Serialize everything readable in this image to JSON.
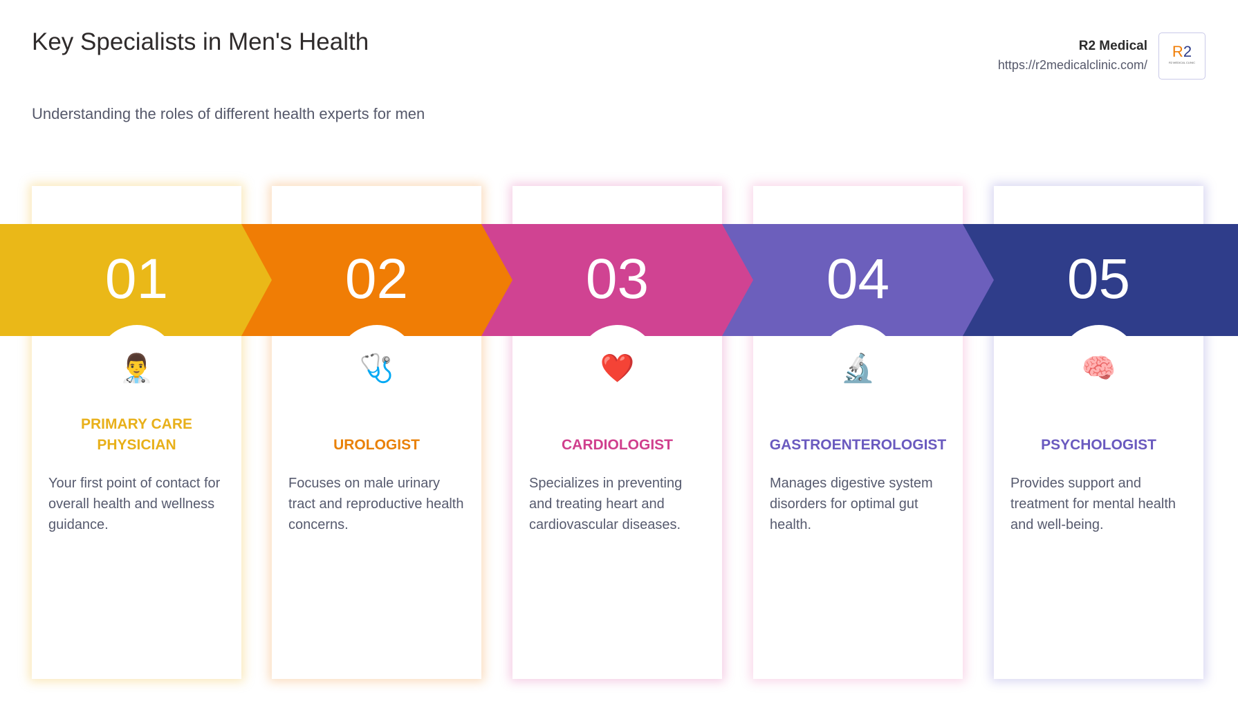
{
  "header": {
    "title": "Key Specialists in Men's Health",
    "subtitle": "Understanding the roles of different health experts for men"
  },
  "brand": {
    "name": "R2 Medical",
    "url": "https://r2medicalclinic.com/",
    "logo_text": "R2",
    "logo_subtext": "R2 MEDICAL CLINIC"
  },
  "specialists": [
    {
      "number": "01",
      "title": "PRIMARY CARE PHYSICIAN",
      "description": "Your first point of contact for overall health and wellness guidance.",
      "icon": "man-health-worker-icon",
      "emoji": "👨‍⚕️",
      "band_color": "#EAB818",
      "title_color": "#E8B01A",
      "glow": "rgba(240,190,60,0.35)"
    },
    {
      "number": "02",
      "title": "UROLOGIST",
      "description": "Focuses on male urinary tract and reproductive health concerns.",
      "icon": "stethoscope-icon",
      "emoji": "🩺",
      "band_color": "#F07D05",
      "title_color": "#E98108",
      "glow": "rgba(240,140,40,0.3)"
    },
    {
      "number": "03",
      "title": "CARDIOLOGIST",
      "description": "Specializes in preventing and treating heart and cardiovascular diseases.",
      "icon": "heart-icon",
      "emoji": "❤️",
      "band_color": "#D04392",
      "title_color": "#D03F8D",
      "glow": "rgba(220,80,160,0.28)"
    },
    {
      "number": "04",
      "title": "GASTROENTEROLOGIST",
      "description": "Manages digestive system disorders for optimal gut health.",
      "icon": "microscope-icon",
      "emoji": "🔬",
      "band_color": "#6C5FBC",
      "title_color": "#6A5ABF",
      "glow": "rgba(230,100,170,0.25)"
    },
    {
      "number": "05",
      "title": "PSYCHOLOGIST",
      "description": "Provides support and treatment for mental health and well-being.",
      "icon": "brain-icon",
      "emoji": "🧠",
      "band_color": "#2F3D8A",
      "title_color": "#6A5ABF",
      "glow": "rgba(120,110,210,0.28)"
    }
  ]
}
